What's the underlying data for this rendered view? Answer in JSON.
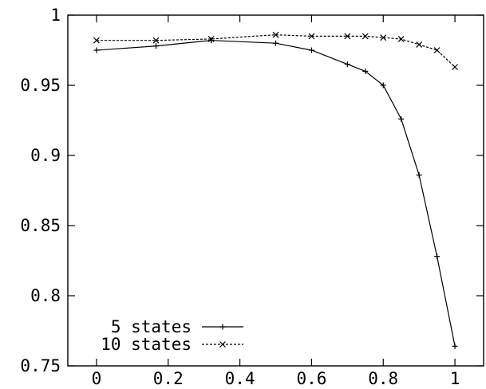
{
  "chart_data": {
    "type": "line",
    "title": "",
    "xlabel": "",
    "ylabel": "",
    "xlim": [
      -0.08,
      1.08
    ],
    "ylim": [
      0.75,
      1.0
    ],
    "x_ticks": [
      {
        "value": 0,
        "label": "0"
      },
      {
        "value": 0.2,
        "label": "0.2"
      },
      {
        "value": 0.4,
        "label": "0.4"
      },
      {
        "value": 0.6,
        "label": "0.6"
      },
      {
        "value": 0.8,
        "label": "0.8"
      },
      {
        "value": 1,
        "label": "1"
      }
    ],
    "y_ticks": [
      {
        "value": 0.75,
        "label": "0.75"
      },
      {
        "value": 0.8,
        "label": "0.8"
      },
      {
        "value": 0.85,
        "label": "0.85"
      },
      {
        "value": 0.9,
        "label": "0.9"
      },
      {
        "value": 0.95,
        "label": "0.95"
      },
      {
        "value": 1.0,
        "label": "1"
      }
    ],
    "grid": false,
    "legend_position": "bottom-left",
    "series": [
      {
        "name": "5 states",
        "marker": "plus",
        "line_style": "solid",
        "color": "#000000",
        "x": [
          0,
          0.166,
          0.32,
          0.5,
          0.6,
          0.7,
          0.75,
          0.8,
          0.85,
          0.9,
          0.95,
          1.0
        ],
        "y": [
          0.975,
          0.978,
          0.982,
          0.98,
          0.975,
          0.965,
          0.96,
          0.95,
          0.926,
          0.886,
          0.828,
          0.764
        ]
      },
      {
        "name": "10 states",
        "marker": "cross",
        "line_style": "dashed",
        "color": "#000000",
        "x": [
          0,
          0.166,
          0.32,
          0.5,
          0.6,
          0.7,
          0.75,
          0.8,
          0.85,
          0.9,
          0.95,
          1.0
        ],
        "y": [
          0.982,
          0.982,
          0.983,
          0.986,
          0.985,
          0.985,
          0.985,
          0.984,
          0.983,
          0.979,
          0.975,
          0.963
        ]
      }
    ]
  }
}
